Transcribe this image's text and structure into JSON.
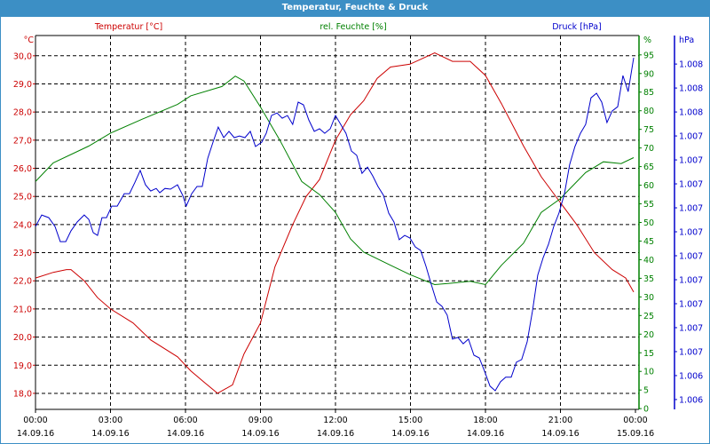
{
  "window": {
    "title": "Temperatur, Feuchte & Druck"
  },
  "chart_data": {
    "type": "line",
    "title": "Temperatur, Feuchte & Druck",
    "grid": true,
    "x_unit": "hours since 14.09.16 00:00",
    "x_range": [
      0,
      24
    ],
    "x_ticks": [
      {
        "h": 0,
        "time": "00:00",
        "date": "14.09.16"
      },
      {
        "h": 3,
        "time": "03:00",
        "date": "14.09.16"
      },
      {
        "h": 6,
        "time": "06:00",
        "date": "14.09.16"
      },
      {
        "h": 9,
        "time": "09:00",
        "date": "14.09.16"
      },
      {
        "h": 12,
        "time": "12:00",
        "date": "14.09.16"
      },
      {
        "h": 15,
        "time": "15:00",
        "date": "14.09.16"
      },
      {
        "h": 18,
        "time": "18:00",
        "date": "14.09.16"
      },
      {
        "h": 21,
        "time": "21:00",
        "date": "14.09.16"
      },
      {
        "h": 24,
        "time": "00:00",
        "date": "15.09.16"
      }
    ],
    "axes": {
      "temperature": {
        "unit": "°C",
        "legend": "Temperatur [°C]",
        "color": "#cc0000",
        "range": [
          17.43,
          30.72
        ],
        "ticks": [
          18,
          19,
          20,
          21,
          22,
          23,
          24,
          25,
          26,
          27,
          28,
          29,
          30
        ],
        "tick_labels": [
          "18,0",
          "19,0",
          "20,0",
          "21,0",
          "22,0",
          "23,0",
          "24,0",
          "25,0",
          "26,0",
          "27,0",
          "28,0",
          "29,0",
          "30,0"
        ]
      },
      "humidity": {
        "unit": "%",
        "legend": "rel. Feuchte [%]",
        "color": "#008000",
        "range": [
          -0.2,
          100.2
        ],
        "ticks": [
          0,
          5,
          10,
          15,
          20,
          25,
          30,
          35,
          40,
          45,
          50,
          55,
          60,
          65,
          70,
          75,
          80,
          85,
          90,
          95
        ],
        "tick_labels": [
          "0",
          "5",
          "10",
          "15",
          "20",
          "25",
          "30",
          "35",
          "40",
          "45",
          "50",
          "55",
          "60",
          "65",
          "70",
          "75",
          "80",
          "85",
          "90",
          "95"
        ]
      },
      "pressure": {
        "unit": "hPa",
        "legend": "Druck [hPa]",
        "color": "#0000cc",
        "range": [
          1006.279,
          1007.839
        ],
        "ticks": [
          1007.72,
          1007.62,
          1007.52,
          1007.42,
          1007.32,
          1007.22,
          1007.12,
          1007.02,
          1006.92,
          1006.82,
          1006.72,
          1006.62,
          1006.52,
          1006.42,
          1006.32
        ],
        "tick_labels": [
          "1.008",
          "1.008",
          "1.008",
          "1.007",
          "1.007",
          "1.007",
          "1.007",
          "1.007",
          "1.007",
          "1.007",
          "1.007",
          "1.007",
          "1.007",
          "1.006",
          "1.006"
        ]
      }
    },
    "series": [
      {
        "name": "Temperatur [°C]",
        "axis": "temperature",
        "x": [
          0,
          0.71,
          1.24,
          1.42,
          1.95,
          2.48,
          3,
          3.9,
          4.61,
          5.68,
          6.21,
          6.74,
          7.28,
          7.88,
          8.34,
          9,
          9.58,
          10.29,
          10.83,
          11.36,
          12,
          12.6,
          13.13,
          13.67,
          14.2,
          14.98,
          15.97,
          16.68,
          17.39,
          18,
          18.64,
          19.52,
          20.23,
          20.98,
          21.65,
          22.36,
          23.07,
          23.61,
          23.93
        ],
        "y": [
          22.1,
          22.3,
          22.4,
          22.4,
          22.0,
          21.4,
          21.0,
          20.5,
          19.9,
          19.3,
          18.8,
          18.4,
          18.0,
          18.3,
          19.4,
          20.5,
          22.5,
          24.0,
          25.0,
          25.6,
          27.0,
          27.9,
          28.4,
          29.2,
          29.6,
          29.7,
          30.1,
          29.8,
          29.8,
          29.3,
          28.3,
          26.8,
          25.7,
          24.8,
          24.0,
          23.0,
          22.4,
          22.1,
          21.6
        ]
      },
      {
        "name": "rel. Feuchte [%]",
        "axis": "humidity",
        "x": [
          0,
          0.71,
          2.13,
          3,
          4.26,
          5.68,
          6.21,
          7.46,
          7.99,
          8.34,
          9,
          9.78,
          10.65,
          11.36,
          12,
          12.6,
          13.13,
          14.2,
          14.98,
          15.97,
          16.68,
          17.39,
          18,
          18.64,
          19.52,
          20.23,
          20.98,
          22.01,
          22.72,
          23.43,
          23.93
        ],
        "y": [
          61,
          66,
          70.5,
          74,
          77.7,
          81.7,
          84,
          86.5,
          89.3,
          88,
          81,
          72,
          61,
          57.5,
          52.7,
          45.6,
          42,
          38.5,
          36,
          33.3,
          33.7,
          34.2,
          33.3,
          38.5,
          44.4,
          52.7,
          56.3,
          63.4,
          66.3,
          65.8,
          67.4
        ]
      },
      {
        "name": "Druck [hPa]",
        "axis": "pressure",
        "x": [
          0,
          0.25,
          0.53,
          0.78,
          0.99,
          1.21,
          1.42,
          1.67,
          1.95,
          2.13,
          2.31,
          2.48,
          2.66,
          2.84,
          3.05,
          3.27,
          3.55,
          3.76,
          3.98,
          4.19,
          4.4,
          4.61,
          4.83,
          4.97,
          5.18,
          5.4,
          5.68,
          5.89,
          6.03,
          6.25,
          6.46,
          6.67,
          6.89,
          7.1,
          7.31,
          7.53,
          7.74,
          7.95,
          8.16,
          8.38,
          8.59,
          8.8,
          9.05,
          9.23,
          9.44,
          9.66,
          9.87,
          10.08,
          10.29,
          10.51,
          10.72,
          10.93,
          11.15,
          11.36,
          11.57,
          11.79,
          12.0,
          12.21,
          12.42,
          12.64,
          12.85,
          13.06,
          13.28,
          13.49,
          13.7,
          13.92,
          14.13,
          14.34,
          14.55,
          14.77,
          14.98,
          15.19,
          15.41,
          15.62,
          15.83,
          16.05,
          16.26,
          16.47,
          16.68,
          16.9,
          17.11,
          17.32,
          17.54,
          17.75,
          17.96,
          18.18,
          18.39,
          18.6,
          18.81,
          19.03,
          19.24,
          19.45,
          19.67,
          19.88,
          20.09,
          20.31,
          20.52,
          20.73,
          20.94,
          21.16,
          21.37,
          21.58,
          21.8,
          22.01,
          22.22,
          22.44,
          22.65,
          22.86,
          23.07,
          23.29,
          23.5,
          23.71,
          23.93
        ],
        "y": [
          1007.042,
          1007.09,
          1007.079,
          1007.042,
          1006.979,
          1006.979,
          1007.024,
          1007.061,
          1007.09,
          1007.072,
          1007.016,
          1007.005,
          1007.079,
          1007.079,
          1007.127,
          1007.127,
          1007.179,
          1007.179,
          1007.227,
          1007.276,
          1007.216,
          1007.19,
          1007.201,
          1007.183,
          1007.201,
          1007.198,
          1007.216,
          1007.172,
          1007.127,
          1007.179,
          1007.209,
          1007.209,
          1007.327,
          1007.394,
          1007.457,
          1007.413,
          1007.439,
          1007.413,
          1007.42,
          1007.413,
          1007.439,
          1007.376,
          1007.394,
          1007.431,
          1007.505,
          1007.516,
          1007.494,
          1007.505,
          1007.468,
          1007.561,
          1007.55,
          1007.487,
          1007.439,
          1007.45,
          1007.431,
          1007.45,
          1007.505,
          1007.468,
          1007.431,
          1007.357,
          1007.339,
          1007.264,
          1007.29,
          1007.253,
          1007.209,
          1007.172,
          1007.098,
          1007.061,
          1006.987,
          1007.005,
          1006.994,
          1006.957,
          1006.942,
          1006.876,
          1006.801,
          1006.727,
          1006.709,
          1006.672,
          1006.572,
          1006.579,
          1006.553,
          1006.572,
          1006.505,
          1006.494,
          1006.439,
          1006.376,
          1006.357,
          1006.394,
          1006.413,
          1006.413,
          1006.476,
          1006.487,
          1006.561,
          1006.69,
          1006.839,
          1006.913,
          1006.968,
          1007.042,
          1007.098,
          1007.179,
          1007.301,
          1007.376,
          1007.431,
          1007.468,
          1007.579,
          1007.598,
          1007.561,
          1007.476,
          1007.524,
          1007.542,
          1007.672,
          1007.605,
          1007.746
        ]
      }
    ]
  }
}
